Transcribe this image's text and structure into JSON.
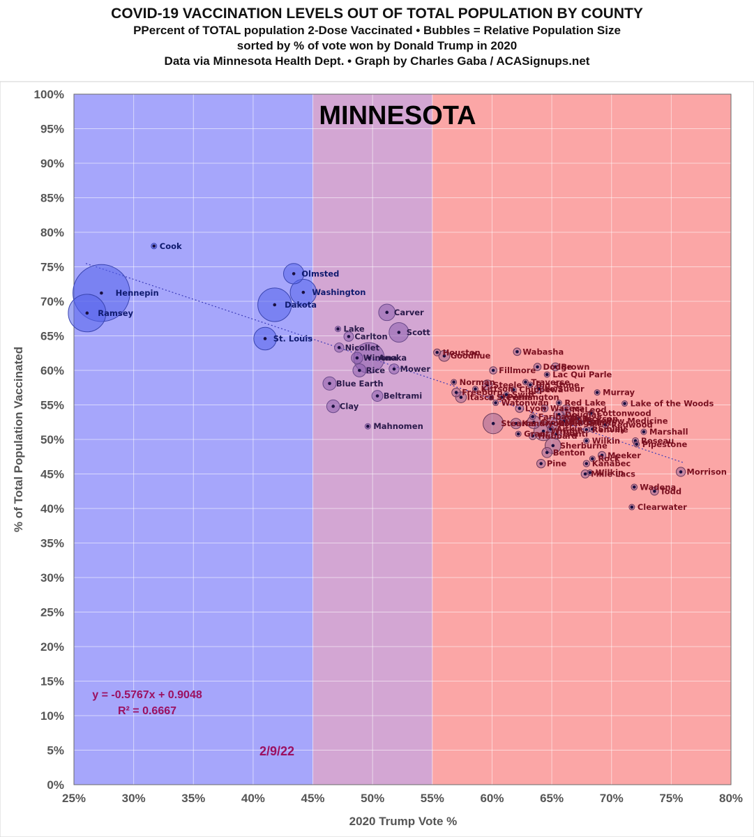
{
  "header": {
    "title": "COVID-19 VACCINATION LEVELS OUT OF TOTAL POPULATION BY COUNTY",
    "subtitle1": "PPercent of TOTAL population 2-Dose Vaccinated • Bubbles = Relative Population Size",
    "subtitle2": "sorted by % of vote won by Donald Trump in 2020",
    "subtitle3": "Data via Minnesota Health Dept. • Graph by Charles Gaba / ACASignups.net"
  },
  "chart_data": {
    "type": "scatter",
    "state_label": "MINNESOTA",
    "date_label": "2/9/22",
    "xlabel": "2020 Trump Vote %",
    "ylabel": "% of Total Population Vaccinated",
    "xlim": [
      25,
      80
    ],
    "ylim": [
      0,
      100
    ],
    "x_ticks": [
      "25%",
      "30%",
      "35%",
      "40%",
      "45%",
      "50%",
      "55%",
      "60%",
      "65%",
      "70%",
      "75%",
      "80%"
    ],
    "y_ticks": [
      "0%",
      "5%",
      "10%",
      "15%",
      "20%",
      "25%",
      "30%",
      "35%",
      "40%",
      "45%",
      "50%",
      "55%",
      "60%",
      "65%",
      "70%",
      "75%",
      "80%",
      "85%",
      "90%",
      "95%",
      "100%"
    ],
    "grid": true,
    "bands": [
      {
        "from": 25,
        "to": 45,
        "color": "#a6a6fb"
      },
      {
        "from": 45,
        "to": 55,
        "color": "#d3a6d3"
      },
      {
        "from": 55,
        "to": 80,
        "color": "#fba6a6"
      }
    ],
    "trendline": {
      "equation": "y = -0.5767x + 0.9048",
      "r2": "R² = 0.6667",
      "slope": -0.5767,
      "intercept": 0.9048
    },
    "colors": {
      "blue_text": "#0f1a6e",
      "red_text": "#7a1020",
      "purple_text": "#2a1a4a",
      "annotation": "#9b1060",
      "trend": "#3a3ab8"
    },
    "points": [
      {
        "name": "Cook",
        "x": 31.7,
        "y": 78.0,
        "pop": 5
      },
      {
        "name": "Hennepin",
        "x": 27.3,
        "y": 71.2,
        "pop": 1260
      },
      {
        "name": "Ramsey",
        "x": 26.1,
        "y": 68.3,
        "pop": 550
      },
      {
        "name": "Olmsted",
        "x": 43.4,
        "y": 74.0,
        "pop": 162
      },
      {
        "name": "Washington",
        "x": 44.2,
        "y": 71.3,
        "pop": 267
      },
      {
        "name": "Dakota",
        "x": 41.8,
        "y": 69.5,
        "pop": 440
      },
      {
        "name": "St. Louis",
        "x": 41.0,
        "y": 64.6,
        "pop": 200
      },
      {
        "name": "Carver",
        "x": 51.2,
        "y": 68.4,
        "pop": 106
      },
      {
        "name": "Scott",
        "x": 52.2,
        "y": 65.5,
        "pop": 150
      },
      {
        "name": "Lake",
        "x": 47.1,
        "y": 66.0,
        "pop": 11
      },
      {
        "name": "Carlton",
        "x": 48.0,
        "y": 64.9,
        "pop": 36
      },
      {
        "name": "Nicollet",
        "x": 47.2,
        "y": 63.3,
        "pop": 34
      },
      {
        "name": "Winona",
        "x": 48.7,
        "y": 61.8,
        "pop": 51
      },
      {
        "name": "Anoka",
        "x": 49.7,
        "y": 61.8,
        "pop": 363
      },
      {
        "name": "Rice",
        "x": 48.9,
        "y": 60.0,
        "pop": 67
      },
      {
        "name": "Mower",
        "x": 51.8,
        "y": 60.2,
        "pop": 40
      },
      {
        "name": "Blue Earth",
        "x": 46.4,
        "y": 58.1,
        "pop": 69
      },
      {
        "name": "Beltrami",
        "x": 50.4,
        "y": 56.3,
        "pop": 47
      },
      {
        "name": "Clay",
        "x": 46.7,
        "y": 54.8,
        "pop": 65
      },
      {
        "name": "Mahnomen",
        "x": 49.6,
        "y": 51.9,
        "pop": 6
      },
      {
        "name": "Houston",
        "x": 55.4,
        "y": 62.6,
        "pop": 19
      },
      {
        "name": "Goodhue",
        "x": 56.0,
        "y": 62.1,
        "pop": 47
      },
      {
        "name": "Wabasha",
        "x": 62.1,
        "y": 62.7,
        "pop": 22
      },
      {
        "name": "Fillmore",
        "x": 60.1,
        "y": 60.0,
        "pop": 21
      },
      {
        "name": "Dodge",
        "x": 63.8,
        "y": 60.5,
        "pop": 21
      },
      {
        "name": "Brown",
        "x": 65.3,
        "y": 60.5,
        "pop": 25
      },
      {
        "name": "Lac Qui Parle",
        "x": 64.6,
        "y": 59.4,
        "pop": 7
      },
      {
        "name": "Traverse",
        "x": 62.8,
        "y": 58.3,
        "pop": 3
      },
      {
        "name": "Norman",
        "x": 56.8,
        "y": 58.3,
        "pop": 6
      },
      {
        "name": "Steele",
        "x": 59.6,
        "y": 57.9,
        "pop": 37
      },
      {
        "name": "Big Stone",
        "x": 63.2,
        "y": 57.9,
        "pop": 5
      },
      {
        "name": "Kittson",
        "x": 58.6,
        "y": 57.3,
        "pop": 4
      },
      {
        "name": "Chippewa",
        "x": 61.8,
        "y": 57.2,
        "pop": 12
      },
      {
        "name": "Le Sueur",
        "x": 63.9,
        "y": 57.3,
        "pop": 28
      },
      {
        "name": "Freeborn",
        "x": 57.0,
        "y": 56.8,
        "pop": 30
      },
      {
        "name": "Swift",
        "x": 61.2,
        "y": 56.5,
        "pop": 9
      },
      {
        "name": "Itasca",
        "x": 57.4,
        "y": 56.1,
        "pop": 45
      },
      {
        "name": "Stevens",
        "x": 59.9,
        "y": 56.1,
        "pop": 10
      },
      {
        "name": "Pennington",
        "x": 60.8,
        "y": 56.1,
        "pop": 14
      },
      {
        "name": "Watonwan",
        "x": 60.3,
        "y": 55.3,
        "pop": 11
      },
      {
        "name": "Murray",
        "x": 68.8,
        "y": 56.8,
        "pop": 8
      },
      {
        "name": "Red Lake",
        "x": 65.6,
        "y": 55.3,
        "pop": 4
      },
      {
        "name": "Lake of the Woods",
        "x": 71.1,
        "y": 55.2,
        "pop": 4
      },
      {
        "name": "Lyon",
        "x": 62.3,
        "y": 54.5,
        "pop": 26
      },
      {
        "name": "Waseca",
        "x": 64.4,
        "y": 54.5,
        "pop": 19
      },
      {
        "name": "McLeod",
        "x": 66.2,
        "y": 54.3,
        "pop": 36
      },
      {
        "name": "Douglas",
        "x": 65.6,
        "y": 53.6,
        "pop": 39
      },
      {
        "name": "Cottonwood",
        "x": 68.3,
        "y": 53.8,
        "pop": 11
      },
      {
        "name": "Faribault",
        "x": 63.4,
        "y": 53.3,
        "pop": 14
      },
      {
        "name": "Polk",
        "x": 66.1,
        "y": 53.0,
        "pop": 31
      },
      {
        "name": "Jackson",
        "x": 67.2,
        "y": 53.0,
        "pop": 10
      },
      {
        "name": "Martin",
        "x": 66.0,
        "y": 52.6,
        "pop": 20
      },
      {
        "name": "Stearns",
        "x": 60.1,
        "y": 52.3,
        "pop": 161
      },
      {
        "name": "Kandiyohi",
        "x": 62.0,
        "y": 52.3,
        "pop": 43
      },
      {
        "name": "Crow Wing",
        "x": 63.5,
        "y": 52.5,
        "pop": 66
      },
      {
        "name": "Otter Tail",
        "x": 65.0,
        "y": 52.3,
        "pop": 58
      },
      {
        "name": "Yellow Medicine",
        "x": 68.2,
        "y": 52.7,
        "pop": 10
      },
      {
        "name": "Grant",
        "x": 67.4,
        "y": 52.4,
        "pop": 6
      },
      {
        "name": "Redwood",
        "x": 69.5,
        "y": 52.1,
        "pop": 15
      },
      {
        "name": "Aitkin",
        "x": 64.9,
        "y": 51.5,
        "pop": 16
      },
      {
        "name": "Renville",
        "x": 67.9,
        "y": 51.4,
        "pop": 15
      },
      {
        "name": "Sibley",
        "x": 68.4,
        "y": 51.5,
        "pop": 15
      },
      {
        "name": "Roseau",
        "x": 72.0,
        "y": 49.8,
        "pop": 15
      },
      {
        "name": "Marshall",
        "x": 72.7,
        "y": 51.1,
        "pop": 9
      },
      {
        "name": "Grant",
        "x": 62.2,
        "y": 50.8,
        "pop": 6
      },
      {
        "name": "Hubbard",
        "x": 63.4,
        "y": 50.5,
        "pop": 21
      },
      {
        "name": "Wright",
        "x": 64.3,
        "y": 51.2,
        "pop": 141
      },
      {
        "name": "Isanti",
        "x": 65.4,
        "y": 50.8,
        "pop": 41
      },
      {
        "name": "Wilkin",
        "x": 67.9,
        "y": 49.8,
        "pop": 6
      },
      {
        "name": "Pipestone",
        "x": 72.1,
        "y": 49.3,
        "pop": 9
      },
      {
        "name": "Sherburne",
        "x": 65.1,
        "y": 49.1,
        "pop": 97
      },
      {
        "name": "Benton",
        "x": 64.6,
        "y": 48.1,
        "pop": 40
      },
      {
        "name": "Meeker",
        "x": 69.2,
        "y": 47.7,
        "pop": 23
      },
      {
        "name": "Rock",
        "x": 68.4,
        "y": 47.2,
        "pop": 10
      },
      {
        "name": "Kanabec",
        "x": 67.9,
        "y": 46.5,
        "pop": 16
      },
      {
        "name": "Pine",
        "x": 64.1,
        "y": 46.5,
        "pop": 29
      },
      {
        "name": "Mille Lacs",
        "x": 67.8,
        "y": 45.0,
        "pop": 26
      },
      {
        "name": "Wilkin",
        "x": 68.2,
        "y": 45.2,
        "pop": 6
      },
      {
        "name": "Morrison",
        "x": 75.8,
        "y": 45.3,
        "pop": 33
      },
      {
        "name": "Wadena",
        "x": 71.9,
        "y": 43.1,
        "pop": 14
      },
      {
        "name": "Todd",
        "x": 73.6,
        "y": 42.5,
        "pop": 25
      },
      {
        "name": "Clearwater",
        "x": 71.7,
        "y": 40.2,
        "pop": 9
      }
    ]
  }
}
